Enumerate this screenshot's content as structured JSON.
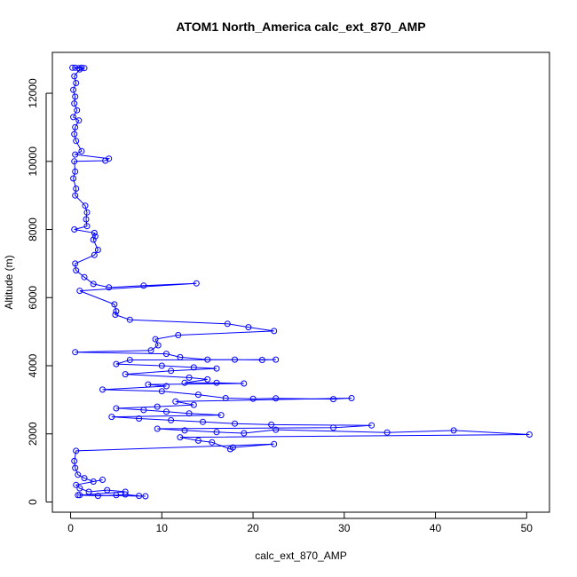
{
  "chart_data": {
    "type": "scatter",
    "title": "ATOM1 North_America calc_ext_870_AMP",
    "xlabel": "calc_ext_870_AMP",
    "ylabel": "Altitude (m)",
    "xlim": [
      -2,
      52.5
    ],
    "ylim": [
      -300,
      13200
    ],
    "xticks": [
      0,
      10,
      20,
      30,
      40,
      50
    ],
    "yticks": [
      0,
      2000,
      4000,
      6000,
      8000,
      10000,
      12000
    ],
    "grid": false,
    "legend": "none",
    "color": "#0000ff",
    "series": [
      {
        "points": [
          [
            0.2,
            12750
          ],
          [
            0.5,
            12750
          ],
          [
            0.9,
            12740
          ],
          [
            1.2,
            12750
          ],
          [
            1.5,
            12740
          ],
          [
            1.0,
            12700
          ],
          [
            0.4,
            12500
          ],
          [
            0.6,
            12300
          ],
          [
            0.3,
            12100
          ],
          [
            0.5,
            11900
          ],
          [
            0.4,
            11700
          ],
          [
            0.7,
            11500
          ],
          [
            0.3,
            11300
          ],
          [
            0.9,
            11200
          ],
          [
            0.5,
            11000
          ],
          [
            0.4,
            10800
          ],
          [
            0.6,
            10600
          ],
          [
            1.2,
            10300
          ],
          [
            0.5,
            10200
          ],
          [
            4.2,
            10080
          ],
          [
            3.8,
            10020
          ],
          [
            0.4,
            10000
          ],
          [
            0.5,
            9700
          ],
          [
            0.3,
            9500
          ],
          [
            0.6,
            9200
          ],
          [
            0.5,
            9000
          ],
          [
            1.6,
            8700
          ],
          [
            1.8,
            8500
          ],
          [
            1.7,
            8300
          ],
          [
            1.8,
            8100
          ],
          [
            0.4,
            8000
          ],
          [
            2.6,
            7900
          ],
          [
            2.7,
            7800
          ],
          [
            2.5,
            7700
          ],
          [
            3.0,
            7400
          ],
          [
            2.6,
            7250
          ],
          [
            0.5,
            7000
          ],
          [
            0.6,
            6800
          ],
          [
            1.5,
            6600
          ],
          [
            2.5,
            6400
          ],
          [
            4.2,
            6300
          ],
          [
            8.0,
            6350
          ],
          [
            13.8,
            6420
          ],
          [
            1.0,
            6200
          ],
          [
            4.8,
            5800
          ],
          [
            5.0,
            5600
          ],
          [
            4.9,
            5500
          ],
          [
            6.5,
            5350
          ],
          [
            17.2,
            5230
          ],
          [
            19.5,
            5130
          ],
          [
            22.3,
            5020
          ],
          [
            11.8,
            4900
          ],
          [
            9.3,
            4780
          ],
          [
            9.6,
            4600
          ],
          [
            8.8,
            4450
          ],
          [
            0.5,
            4400
          ],
          [
            10.5,
            4350
          ],
          [
            12.0,
            4250
          ],
          [
            15.0,
            4180
          ],
          [
            18.0,
            4180
          ],
          [
            21.0,
            4170
          ],
          [
            22.5,
            4180
          ],
          [
            6.5,
            4170
          ],
          [
            5.0,
            4050
          ],
          [
            10.0,
            4000
          ],
          [
            13.5,
            3950
          ],
          [
            16.0,
            3920
          ],
          [
            11.0,
            3850
          ],
          [
            6.0,
            3750
          ],
          [
            13.0,
            3650
          ],
          [
            15.0,
            3600
          ],
          [
            12.5,
            3500
          ],
          [
            16.0,
            3500
          ],
          [
            19.0,
            3480
          ],
          [
            8.5,
            3450
          ],
          [
            10.5,
            3400
          ],
          [
            3.5,
            3300
          ],
          [
            10.0,
            3250
          ],
          [
            14.0,
            3150
          ],
          [
            17.0,
            3050
          ],
          [
            20.0,
            3030
          ],
          [
            22.5,
            3040
          ],
          [
            28.8,
            3020
          ],
          [
            30.8,
            3050
          ],
          [
            11.5,
            2950
          ],
          [
            13.5,
            2850
          ],
          [
            9.5,
            2800
          ],
          [
            5.0,
            2750
          ],
          [
            8.0,
            2700
          ],
          [
            10.5,
            2650
          ],
          [
            13.0,
            2600
          ],
          [
            16.5,
            2550
          ],
          [
            4.5,
            2500
          ],
          [
            7.5,
            2450
          ],
          [
            11.0,
            2400
          ],
          [
            14.5,
            2350
          ],
          [
            18.0,
            2300
          ],
          [
            22.0,
            2270
          ],
          [
            33.0,
            2250
          ],
          [
            28.8,
            2180
          ],
          [
            9.5,
            2150
          ],
          [
            12.5,
            2100
          ],
          [
            16.0,
            2050
          ],
          [
            19.0,
            2020
          ],
          [
            22.5,
            2120
          ],
          [
            34.7,
            2040
          ],
          [
            42.0,
            2100
          ],
          [
            50.3,
            1980
          ],
          [
            12.0,
            1900
          ],
          [
            14.0,
            1800
          ],
          [
            15.5,
            1750
          ],
          [
            17.5,
            1550
          ],
          [
            17.8,
            1600
          ],
          [
            22.3,
            1700
          ],
          [
            0.6,
            1500
          ],
          [
            0.4,
            1200
          ],
          [
            0.5,
            1000
          ],
          [
            0.8,
            800
          ],
          [
            1.5,
            700
          ],
          [
            2.5,
            600
          ],
          [
            3.5,
            650
          ],
          [
            0.6,
            500
          ],
          [
            1.0,
            400
          ],
          [
            2.0,
            300
          ],
          [
            4.0,
            350
          ],
          [
            6.0,
            300
          ],
          [
            1.0,
            200
          ],
          [
            3.0,
            180
          ],
          [
            5.0,
            200
          ],
          [
            6.0,
            220
          ],
          [
            7.5,
            180
          ],
          [
            8.2,
            170
          ],
          [
            0.8,
            200
          ]
        ]
      }
    ]
  }
}
